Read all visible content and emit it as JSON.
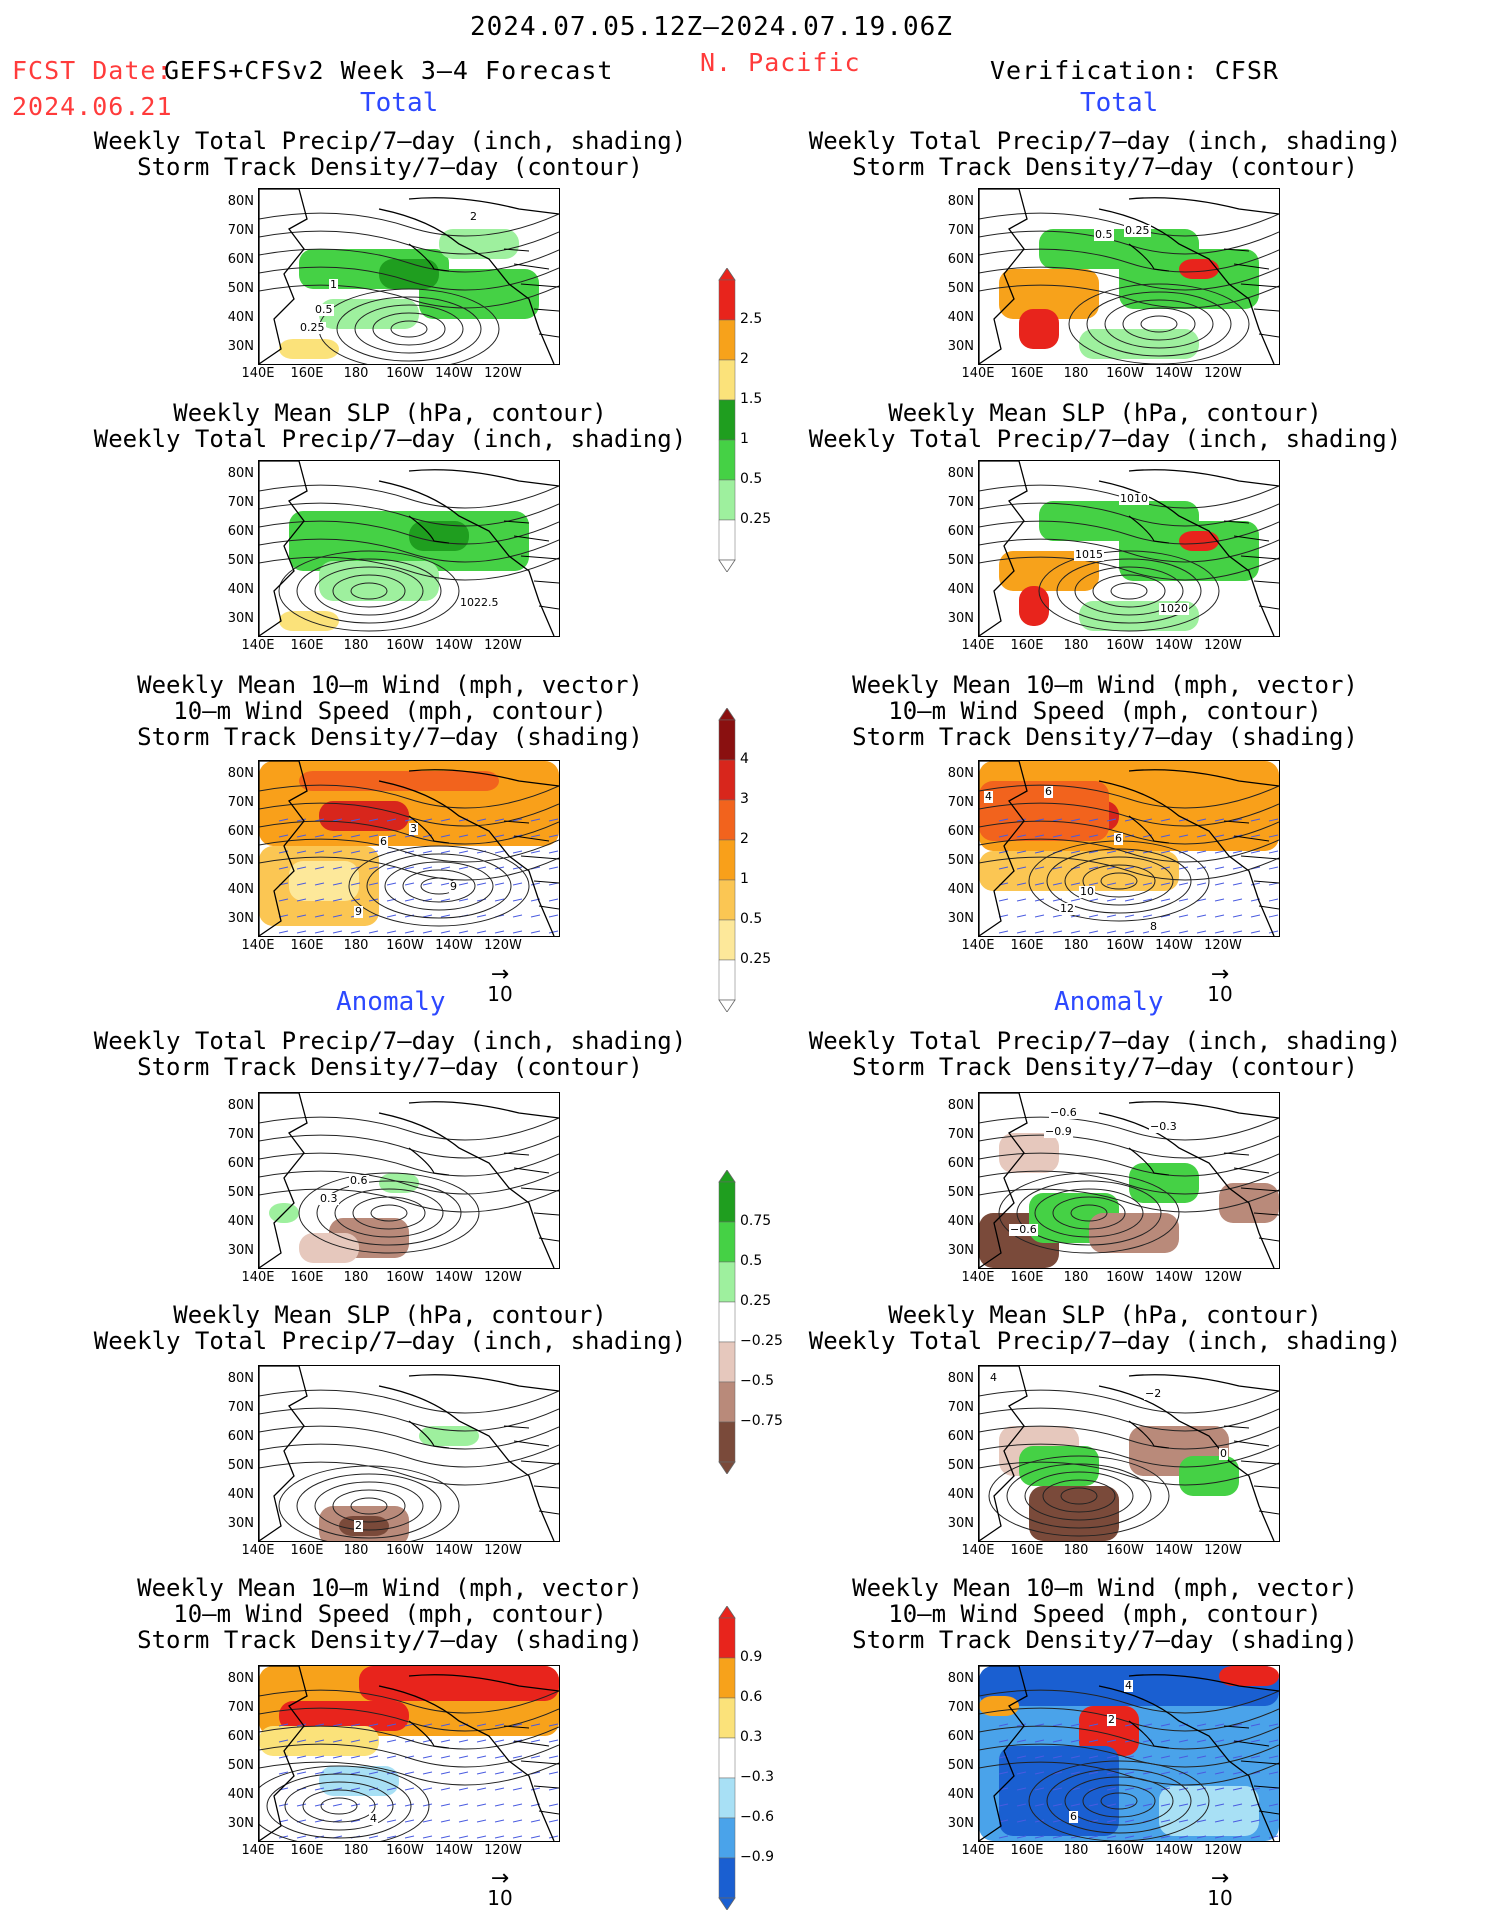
{
  "header": {
    "date_range": "2024.07.05.12Z–2024.07.19.06Z",
    "fcst_label": "FCST Date:",
    "fcst_date": "2024.06.21",
    "model": "GEFS+CFSv2 Week 3–4 Forecast",
    "region": "N. Pacific",
    "verification": "Verification: CFSR"
  },
  "sections": {
    "total": "Total",
    "anomaly": "Anomaly"
  },
  "titles": {
    "precip_storm": [
      "Weekly Total Precip/7–day (inch, shading)",
      "Storm Track Density/7–day (contour)"
    ],
    "slp_precip": [
      "Weekly Mean SLP (hPa, contour)",
      "Weekly Total Precip/7–day (inch, shading)"
    ],
    "wind_storm": [
      "Weekly Mean 10–m Wind (mph, vector)",
      "10–m Wind Speed (mph, contour)",
      "Storm Track Density/7–day (shading)"
    ]
  },
  "axes": {
    "lat_ticks": [
      "80N",
      "70N",
      "60N",
      "50N",
      "40N",
      "30N"
    ],
    "lon_ticks": [
      "140E",
      "160E",
      "180",
      "160W",
      "140W",
      "120W"
    ]
  },
  "vector_ref": "10",
  "colorbars": [
    {
      "id": "precip-total",
      "labels": [
        "2.5",
        "2",
        "1.5",
        "1",
        "0.5",
        "0.25"
      ],
      "colors": [
        "#e8241c",
        "#f7a21b",
        "#fbe27a",
        "#1f9e1f",
        "#45d145",
        "#9ef09e",
        "#ffffff"
      ]
    },
    {
      "id": "storm-total",
      "labels": [
        "4",
        "3",
        "2",
        "1",
        "0.5",
        "0.25"
      ],
      "colors": [
        "#8a1010",
        "#d8261c",
        "#f2631d",
        "#f9a01a",
        "#fbc653",
        "#fde89a",
        "#ffffff"
      ]
    },
    {
      "id": "precip-anom",
      "labels": [
        "0.75",
        "0.5",
        "0.25",
        "−0.25",
        "−0.5",
        "−0.75"
      ],
      "colors": [
        "#1f9e1f",
        "#45d145",
        "#9ef09e",
        "#ffffff",
        "#e6c8bd",
        "#b98a7a",
        "#7a4a3a"
      ]
    },
    {
      "id": "storm-anom",
      "labels": [
        "0.9",
        "0.6",
        "0.3",
        "−0.3",
        "−0.6",
        "−0.9"
      ],
      "colors": [
        "#e8241c",
        "#f7a21b",
        "#fbe27a",
        "#ffffff",
        "#a8e0f5",
        "#4aa3ea",
        "#1a5fd1"
      ]
    }
  ],
  "panels": [
    {
      "id": "fcst-total-precip",
      "labels": [
        "2",
        "1",
        "0.5",
        "0.25"
      ]
    },
    {
      "id": "cfsr-total-precip",
      "labels": [
        "0.5",
        "0.25"
      ]
    },
    {
      "id": "fcst-total-slp",
      "labels": [
        "1022.5"
      ]
    },
    {
      "id": "cfsr-total-slp",
      "labels": [
        "1010",
        "1015",
        "1020"
      ]
    },
    {
      "id": "fcst-total-wind",
      "labels": [
        "3",
        "6",
        "9",
        "9"
      ]
    },
    {
      "id": "cfsr-total-wind",
      "labels": [
        "4",
        "6",
        "6",
        "10",
        "12",
        "8"
      ]
    },
    {
      "id": "fcst-anom-precip",
      "labels": [
        "0.6",
        "0.3"
      ]
    },
    {
      "id": "cfsr-anom-precip",
      "labels": [
        "−0.6",
        "−0.9",
        "−0.3",
        "−0.6"
      ]
    },
    {
      "id": "fcst-anom-slp",
      "labels": [
        "2"
      ]
    },
    {
      "id": "cfsr-anom-slp",
      "labels": [
        "4",
        "−2",
        "0"
      ]
    },
    {
      "id": "fcst-anom-wind",
      "labels": [
        "4"
      ]
    },
    {
      "id": "cfsr-anom-wind",
      "labels": [
        "4",
        "2",
        "6"
      ]
    }
  ]
}
